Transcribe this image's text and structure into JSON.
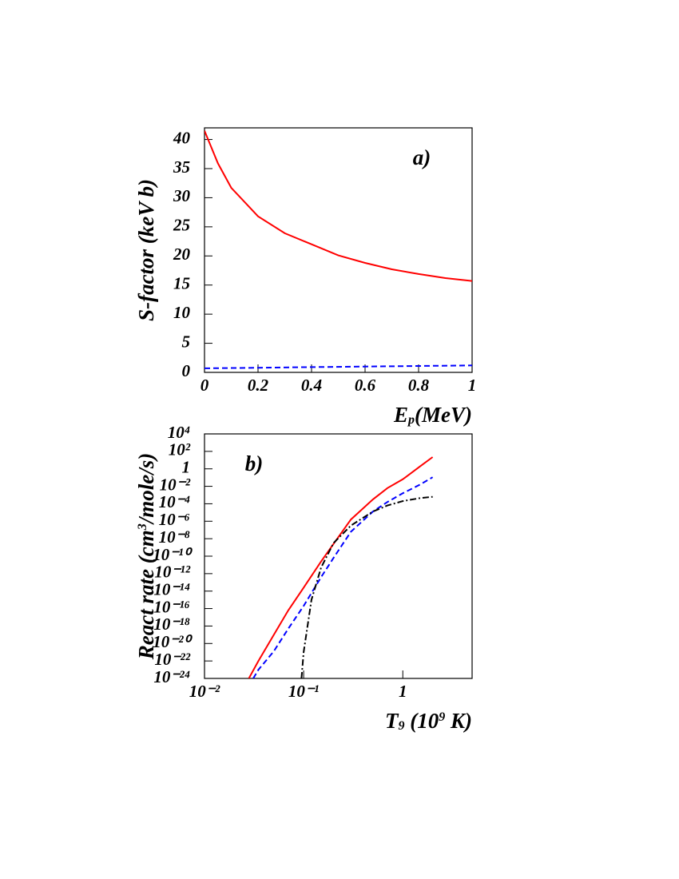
{
  "chart_data": [
    {
      "type": "line",
      "annotation": "a)",
      "y_label": "S-factor (keV b)",
      "x_label": [
        "E",
        "p",
        "(MeV)"
      ],
      "xlim": [
        0,
        1
      ],
      "xticks": [
        0,
        0.2,
        0.4,
        0.6,
        0.8,
        1
      ],
      "ylim": [
        0,
        42
      ],
      "yticks": [
        0,
        5,
        10,
        15,
        20,
        25,
        30,
        35,
        40
      ],
      "series": [
        {
          "color": "#ff0000",
          "style": "solid",
          "x": [
            0,
            0.05,
            0.1,
            0.2,
            0.3,
            0.4,
            0.5,
            0.6,
            0.7,
            0.8,
            0.9,
            1
          ],
          "values": [
            41.5,
            35.9,
            31.7,
            26.8,
            23.9,
            22,
            20.1,
            18.8,
            17.7,
            16.9,
            16.2,
            15.7
          ]
        },
        {
          "color": "#0000ff",
          "style": "dashed",
          "x": [
            0,
            0.2,
            0.4,
            0.6,
            0.8,
            1
          ],
          "values": [
            0.7,
            0.8,
            0.9,
            1.0,
            1.1,
            1.2
          ]
        }
      ]
    },
    {
      "type": "line",
      "annotation": "b)",
      "y_label": [
        "React rate (cm",
        "3",
        "/mole/s)"
      ],
      "x_label": [
        "T",
        "9",
        " (10",
        "9",
        " K)"
      ],
      "xscale": "log",
      "yscale": "log",
      "xlim": [
        0.01,
        5
      ],
      "xticks": [
        {
          "value": 0.01,
          "label": "10⁻²"
        },
        {
          "value": 0.1,
          "label": "10⁻¹"
        },
        1
      ],
      "ylim": [
        1e-24,
        10000
      ],
      "yticks": [
        {
          "value": 1e-24,
          "label": "10⁻²⁴"
        },
        {
          "value": 1e-22,
          "label": "10⁻²²"
        },
        {
          "value": 1e-20,
          "label": "10⁻²⁰"
        },
        {
          "value": 1e-18,
          "label": "10⁻¹⁸"
        },
        {
          "value": 1e-16,
          "label": "10⁻¹⁶"
        },
        {
          "value": 1e-14,
          "label": "10⁻¹⁴"
        },
        {
          "value": 1e-12,
          "label": "10⁻¹²"
        },
        {
          "value": 1e-10,
          "label": "10⁻¹⁰"
        },
        {
          "value": 1e-08,
          "label": "10⁻⁸"
        },
        {
          "value": 1e-06,
          "label": "10⁻⁶"
        },
        {
          "value": 0.0001,
          "label": "10⁻⁴"
        },
        {
          "value": 0.01,
          "label": "10⁻²"
        },
        1,
        {
          "value": 100,
          "label": "10²"
        },
        {
          "value": 10000,
          "label": "10⁴"
        }
      ],
      "series": [
        {
          "color": "#ff0000",
          "style": "solid",
          "x": [
            0.028,
            0.035,
            0.05,
            0.07,
            0.1,
            0.15,
            0.2,
            0.3,
            0.5,
            0.7,
            1,
            1.5,
            2
          ],
          "values": [
            1e-24,
            1e-22,
            1e-19,
            6.3e-17,
            2.5e-14,
            2.5e-11,
            2.5e-09,
            1.6e-06,
            0.00032,
            0.0063,
            0.063,
            2,
            22
          ]
        },
        {
          "color": "#0000ff",
          "style": "dashed",
          "x": [
            0.031,
            0.035,
            0.05,
            0.07,
            0.1,
            0.15,
            0.2,
            0.3,
            0.5,
            0.7,
            1,
            1.5,
            2
          ],
          "values": [
            1e-24,
            1e-23,
            1.3e-21,
            5e-19,
            2e-16,
            4e-13,
            6.3e-11,
            6.3e-08,
            1.3e-05,
            0.00016,
            0.0016,
            0.016,
            0.11
          ]
        },
        {
          "color": "#000000",
          "style": "dashdot",
          "x": [
            0.095,
            0.1,
            0.12,
            0.15,
            0.2,
            0.3,
            0.5,
            0.7,
            1,
            1.5,
            2
          ],
          "values": [
            1e-24,
            1e-21,
            1e-15,
            5e-12,
            3.2e-09,
            3.2e-07,
            1.3e-05,
            6.3e-05,
            0.0002,
            0.00045,
            0.00063
          ]
        }
      ]
    }
  ]
}
